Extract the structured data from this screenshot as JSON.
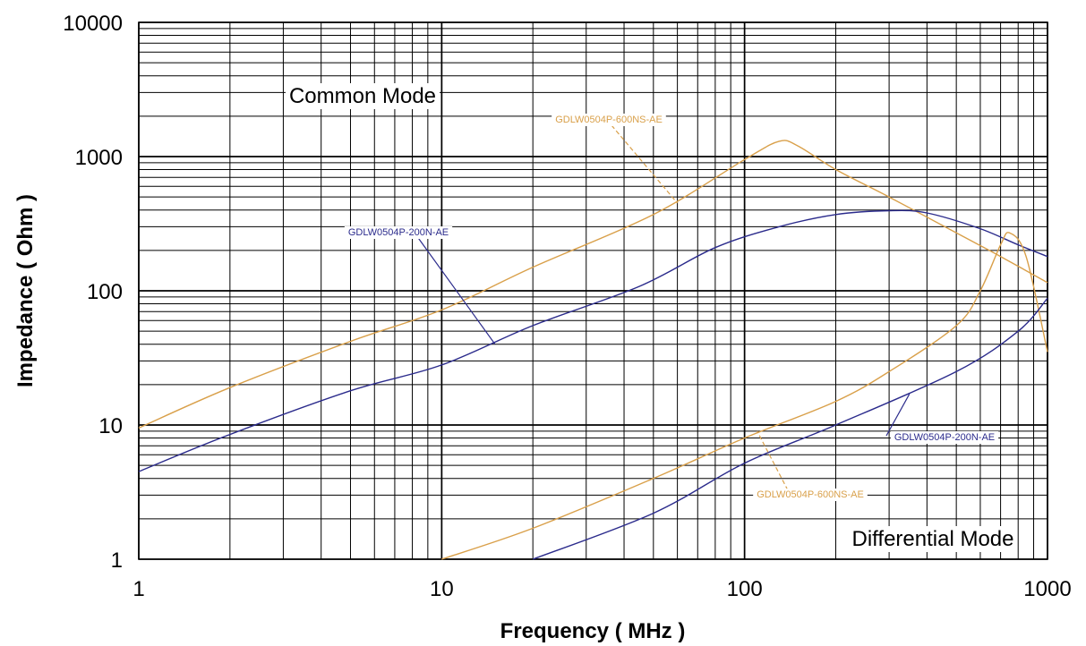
{
  "chart_data": {
    "type": "line",
    "title": "",
    "xlabel": "Frequency ( MHz )",
    "ylabel": "Impedance ( Ohm )",
    "xscale": "log",
    "yscale": "log",
    "xlim": [
      1,
      1000
    ],
    "ylim": [
      1,
      10000
    ],
    "xticks": [
      "1",
      "10",
      "100",
      "1000"
    ],
    "yticks": [
      "1",
      "10",
      "100",
      "1000",
      "10000"
    ],
    "grid": true,
    "colors": {
      "orange": "#d9a04a",
      "blue": "#2b2b8c"
    },
    "region_labels": {
      "common": "Common Mode",
      "differential": "Differential Mode"
    },
    "series": [
      {
        "name": "GDLW0504P-600NS-AE",
        "mode": "common",
        "color": "#d9a04a",
        "points": [
          [
            1,
            9.5
          ],
          [
            2,
            19
          ],
          [
            5,
            42
          ],
          [
            10,
            72
          ],
          [
            20,
            150
          ],
          [
            50,
            370
          ],
          [
            100,
            950
          ],
          [
            130,
            1300
          ],
          [
            150,
            1200
          ],
          [
            200,
            800
          ],
          [
            300,
            500
          ],
          [
            500,
            270
          ],
          [
            700,
            180
          ],
          [
            1000,
            115
          ]
        ]
      },
      {
        "name": "GDLW0504P-200N-AE",
        "mode": "common",
        "color": "#2b2b8c",
        "points": [
          [
            1,
            4.5
          ],
          [
            2,
            8.5
          ],
          [
            5,
            18
          ],
          [
            10,
            28
          ],
          [
            20,
            55
          ],
          [
            45,
            108
          ],
          [
            80,
            210
          ],
          [
            130,
            300
          ],
          [
            200,
            370
          ],
          [
            300,
            395
          ],
          [
            400,
            380
          ],
          [
            600,
            290
          ],
          [
            800,
            220
          ],
          [
            1000,
            180
          ]
        ]
      },
      {
        "name": "GDLW0504P-600NS-AE",
        "mode": "differential",
        "color": "#d9a04a",
        "points": [
          [
            10,
            1
          ],
          [
            20,
            1.7
          ],
          [
            50,
            4
          ],
          [
            100,
            8
          ],
          [
            200,
            15
          ],
          [
            300,
            25
          ],
          [
            500,
            55
          ],
          [
            600,
            100
          ],
          [
            700,
            220
          ],
          [
            750,
            270
          ],
          [
            850,
            180
          ],
          [
            1000,
            35
          ]
        ]
      },
      {
        "name": "GDLW0504P-200N-AE",
        "mode": "differential",
        "color": "#2b2b8c",
        "points": [
          [
            20,
            1
          ],
          [
            50,
            2.2
          ],
          [
            100,
            5.2
          ],
          [
            200,
            10
          ],
          [
            500,
            25
          ],
          [
            800,
            50
          ],
          [
            1000,
            88
          ]
        ]
      }
    ]
  }
}
